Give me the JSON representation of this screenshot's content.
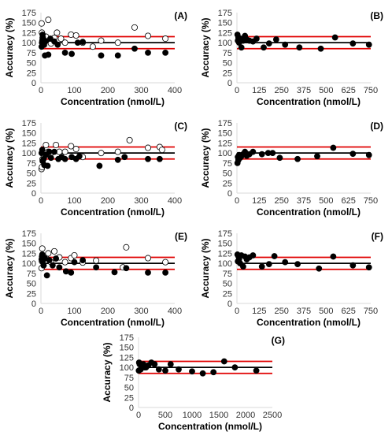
{
  "colors": {
    "limit_line": "#e00000",
    "mean_line": "#000000",
    "filled_marker": "#000000",
    "open_marker": "#ffffff",
    "axis": "#d9d9d9"
  },
  "chart_data": [
    {
      "type": "scatter",
      "panel_label": "(A)",
      "xlabel": "Concentration (nmol/L)",
      "ylabel": "Accuracy (%)",
      "xlim": [
        0,
        400
      ],
      "ylim": [
        0,
        175
      ],
      "xticks": [
        0,
        100,
        200,
        300,
        400
      ],
      "yticks": [
        0,
        25,
        50,
        75,
        100,
        125,
        150,
        175
      ],
      "reference_lines": [
        115,
        100,
        85
      ],
      "series": [
        {
          "marker": "open",
          "points": [
            [
              2,
              148
            ],
            [
              3,
              125
            ],
            [
              5,
              112
            ],
            [
              8,
              105
            ],
            [
              10,
              95
            ],
            [
              15,
              115
            ],
            [
              22,
              157
            ],
            [
              30,
              98
            ],
            [
              40,
              112
            ],
            [
              48,
              125
            ],
            [
              60,
              110
            ],
            [
              72,
              100
            ],
            [
              90,
              120
            ],
            [
              105,
              118
            ],
            [
              125,
              100
            ],
            [
              155,
              90
            ],
            [
              180,
              105
            ],
            [
              230,
              100
            ],
            [
              280,
              138
            ],
            [
              320,
              117
            ],
            [
              372,
              110
            ]
          ]
        },
        {
          "marker": "filled",
          "points": [
            [
              2,
              90
            ],
            [
              3,
              100
            ],
            [
              4,
              105
            ],
            [
              5,
              120
            ],
            [
              6,
              112
            ],
            [
              8,
              95
            ],
            [
              12,
              68
            ],
            [
              15,
              104
            ],
            [
              22,
              70
            ],
            [
              28,
              110
            ],
            [
              40,
              103
            ],
            [
              50,
              95
            ],
            [
              72,
              75
            ],
            [
              92,
              72
            ],
            [
              110,
              100
            ],
            [
              125,
              102
            ],
            [
              180,
              68
            ],
            [
              230,
              68
            ],
            [
              280,
              85
            ],
            [
              320,
              75
            ],
            [
              372,
              75
            ]
          ]
        }
      ]
    },
    {
      "type": "scatter",
      "panel_label": "(B)",
      "xlabel": "Concentration (nmol/L)",
      "ylabel": "Accuracy (%)",
      "xlim": [
        0,
        750
      ],
      "ylim": [
        0,
        175
      ],
      "xticks": [
        0,
        125,
        250,
        375,
        500,
        625,
        750
      ],
      "yticks": [
        0,
        25,
        50,
        75,
        100,
        125,
        150,
        175
      ],
      "reference_lines": [
        115,
        100,
        85
      ],
      "series": [
        {
          "marker": "filled",
          "points": [
            [
              3,
              120
            ],
            [
              5,
              105
            ],
            [
              8,
              113
            ],
            [
              12,
              100
            ],
            [
              20,
              110
            ],
            [
              25,
              88
            ],
            [
              35,
              105
            ],
            [
              45,
              117
            ],
            [
              55,
              108
            ],
            [
              70,
              105
            ],
            [
              90,
              103
            ],
            [
              110,
              110
            ],
            [
              150,
              88
            ],
            [
              180,
              98
            ],
            [
              220,
              108
            ],
            [
              270,
              95
            ],
            [
              350,
              88
            ],
            [
              470,
              85
            ],
            [
              550,
              113
            ],
            [
              650,
              98
            ],
            [
              740,
              95
            ]
          ]
        }
      ]
    },
    {
      "type": "scatter",
      "panel_label": "(C)",
      "xlabel": "Concentration (nmol/L)",
      "ylabel": "Accuracy (%)",
      "xlim": [
        0,
        400
      ],
      "ylim": [
        0,
        175
      ],
      "xticks": [
        0,
        100,
        200,
        300,
        400
      ],
      "yticks": [
        0,
        25,
        50,
        75,
        100,
        125,
        150,
        175
      ],
      "reference_lines": [
        115,
        100,
        85
      ],
      "series": [
        {
          "marker": "open",
          "points": [
            [
              2,
              60
            ],
            [
              3,
              65
            ],
            [
              5,
              85
            ],
            [
              8,
              95
            ],
            [
              15,
              120
            ],
            [
              22,
              103
            ],
            [
              30,
              100
            ],
            [
              45,
              120
            ],
            [
              55,
              103
            ],
            [
              72,
              103
            ],
            [
              90,
              117
            ],
            [
              105,
              110
            ],
            [
              125,
              90
            ],
            [
              180,
              100
            ],
            [
              230,
              103
            ],
            [
              265,
              132
            ],
            [
              320,
              113
            ],
            [
              355,
              115
            ],
            [
              362,
              108
            ]
          ]
        },
        {
          "marker": "filled",
          "points": [
            [
              2,
              100
            ],
            [
              4,
              108
            ],
            [
              5,
              80
            ],
            [
              8,
              85
            ],
            [
              10,
              70
            ],
            [
              15,
              95
            ],
            [
              20,
              68
            ],
            [
              25,
              103
            ],
            [
              30,
              88
            ],
            [
              40,
              103
            ],
            [
              52,
              85
            ],
            [
              62,
              90
            ],
            [
              72,
              85
            ],
            [
              92,
              90
            ],
            [
              105,
              85
            ],
            [
              115,
              92
            ],
            [
              175,
              68
            ],
            [
              230,
              83
            ],
            [
              250,
              90
            ],
            [
              320,
              85
            ],
            [
              355,
              85
            ]
          ]
        }
      ]
    },
    {
      "type": "scatter",
      "panel_label": "(D)",
      "xlabel": "Concentration (nmol/L)",
      "ylabel": "Accuracy (%)",
      "xlim": [
        0,
        750
      ],
      "ylim": [
        0,
        175
      ],
      "xticks": [
        0,
        125,
        250,
        375,
        500,
        625,
        750
      ],
      "yticks": [
        0,
        25,
        50,
        75,
        100,
        125,
        150,
        175
      ],
      "reference_lines": [
        115,
        100,
        85
      ],
      "series": [
        {
          "marker": "filled",
          "points": [
            [
              3,
              75
            ],
            [
              5,
              90
            ],
            [
              8,
              82
            ],
            [
              12,
              95
            ],
            [
              18,
              88
            ],
            [
              25,
              92
            ],
            [
              35,
              97
            ],
            [
              45,
              103
            ],
            [
              55,
              93
            ],
            [
              70,
              97
            ],
            [
              90,
              103
            ],
            [
              140,
              97
            ],
            [
              175,
              100
            ],
            [
              200,
              100
            ],
            [
              240,
              88
            ],
            [
              340,
              85
            ],
            [
              450,
              92
            ],
            [
              540,
              113
            ],
            [
              650,
              98
            ],
            [
              740,
              95
            ]
          ]
        }
      ]
    },
    {
      "type": "scatter",
      "panel_label": "(E)",
      "xlabel": "Concentration (nmol/L)",
      "ylabel": "Accuracy (%)",
      "xlim": [
        0,
        400
      ],
      "ylim": [
        0,
        175
      ],
      "xticks": [
        0,
        100,
        200,
        300,
        400
      ],
      "yticks": [
        0,
        25,
        50,
        75,
        100,
        125,
        150,
        175
      ],
      "reference_lines": [
        115,
        100,
        85
      ],
      "series": [
        {
          "marker": "open",
          "points": [
            [
              2,
              88
            ],
            [
              3,
              105
            ],
            [
              4,
              137
            ],
            [
              5,
              115
            ],
            [
              8,
              95
            ],
            [
              15,
              113
            ],
            [
              22,
              125
            ],
            [
              30,
              103
            ],
            [
              40,
              130
            ],
            [
              55,
              115
            ],
            [
              72,
              103
            ],
            [
              90,
              113
            ],
            [
              100,
              120
            ],
            [
              125,
              102
            ],
            [
              165,
              107
            ],
            [
              245,
              90
            ],
            [
              255,
              140
            ],
            [
              320,
              113
            ],
            [
              372,
              103
            ]
          ]
        },
        {
          "marker": "filled",
          "points": [
            [
              2,
              110
            ],
            [
              3,
              117
            ],
            [
              4,
              122
            ],
            [
              5,
              105
            ],
            [
              8,
              95
            ],
            [
              12,
              113
            ],
            [
              18,
              70
            ],
            [
              25,
              108
            ],
            [
              35,
              95
            ],
            [
              45,
              112
            ],
            [
              55,
              90
            ],
            [
              75,
              80
            ],
            [
              90,
              77
            ],
            [
              100,
              103
            ],
            [
              125,
              108
            ],
            [
              165,
              90
            ],
            [
              220,
              78
            ],
            [
              255,
              88
            ],
            [
              320,
              77
            ],
            [
              372,
              77
            ]
          ]
        }
      ]
    },
    {
      "type": "scatter",
      "panel_label": "(F)",
      "xlabel": "Concentration (nmol/L)",
      "ylabel": "Accuracy (%)",
      "xlim": [
        0,
        750
      ],
      "ylim": [
        0,
        175
      ],
      "xticks": [
        0,
        125,
        250,
        375,
        500,
        625,
        750
      ],
      "yticks": [
        0,
        25,
        50,
        75,
        100,
        125,
        150,
        175
      ],
      "reference_lines": [
        115,
        100,
        85
      ],
      "series": [
        {
          "marker": "filled",
          "points": [
            [
              3,
              122
            ],
            [
              5,
              105
            ],
            [
              8,
              118
            ],
            [
              12,
              110
            ],
            [
              18,
              100
            ],
            [
              25,
              120
            ],
            [
              35,
              92
            ],
            [
              45,
              117
            ],
            [
              55,
              110
            ],
            [
              70,
              115
            ],
            [
              90,
              120
            ],
            [
              140,
              92
            ],
            [
              180,
              98
            ],
            [
              210,
              118
            ],
            [
              270,
              103
            ],
            [
              340,
              98
            ],
            [
              460,
              87
            ],
            [
              540,
              117
            ],
            [
              650,
              95
            ],
            [
              740,
              90
            ]
          ]
        }
      ]
    },
    {
      "type": "scatter",
      "panel_label": "(G)",
      "xlabel": "Concentration (nmol/L)",
      "ylabel": "Accuracy (%)",
      "xlim": [
        0,
        2500
      ],
      "ylim": [
        0,
        175
      ],
      "xticks": [
        0,
        500,
        1000,
        1500,
        2000,
        2500
      ],
      "yticks": [
        0,
        25,
        50,
        75,
        100,
        125,
        150,
        175
      ],
      "reference_lines": [
        115,
        100,
        85
      ],
      "series": [
        {
          "marker": "filled",
          "points": [
            [
              5,
              92
            ],
            [
              10,
              112
            ],
            [
              20,
              108
            ],
            [
              40,
              95
            ],
            [
              60,
              103
            ],
            [
              90,
              108
            ],
            [
              110,
              100
            ],
            [
              140,
              100
            ],
            [
              180,
              105
            ],
            [
              240,
              112
            ],
            [
              300,
              108
            ],
            [
              380,
              95
            ],
            [
              500,
              92
            ],
            [
              600,
              108
            ],
            [
              750,
              95
            ],
            [
              1000,
              90
            ],
            [
              1200,
              85
            ],
            [
              1400,
              88
            ],
            [
              1600,
              115
            ],
            [
              1800,
              100
            ],
            [
              2200,
              92
            ]
          ]
        }
      ]
    }
  ]
}
